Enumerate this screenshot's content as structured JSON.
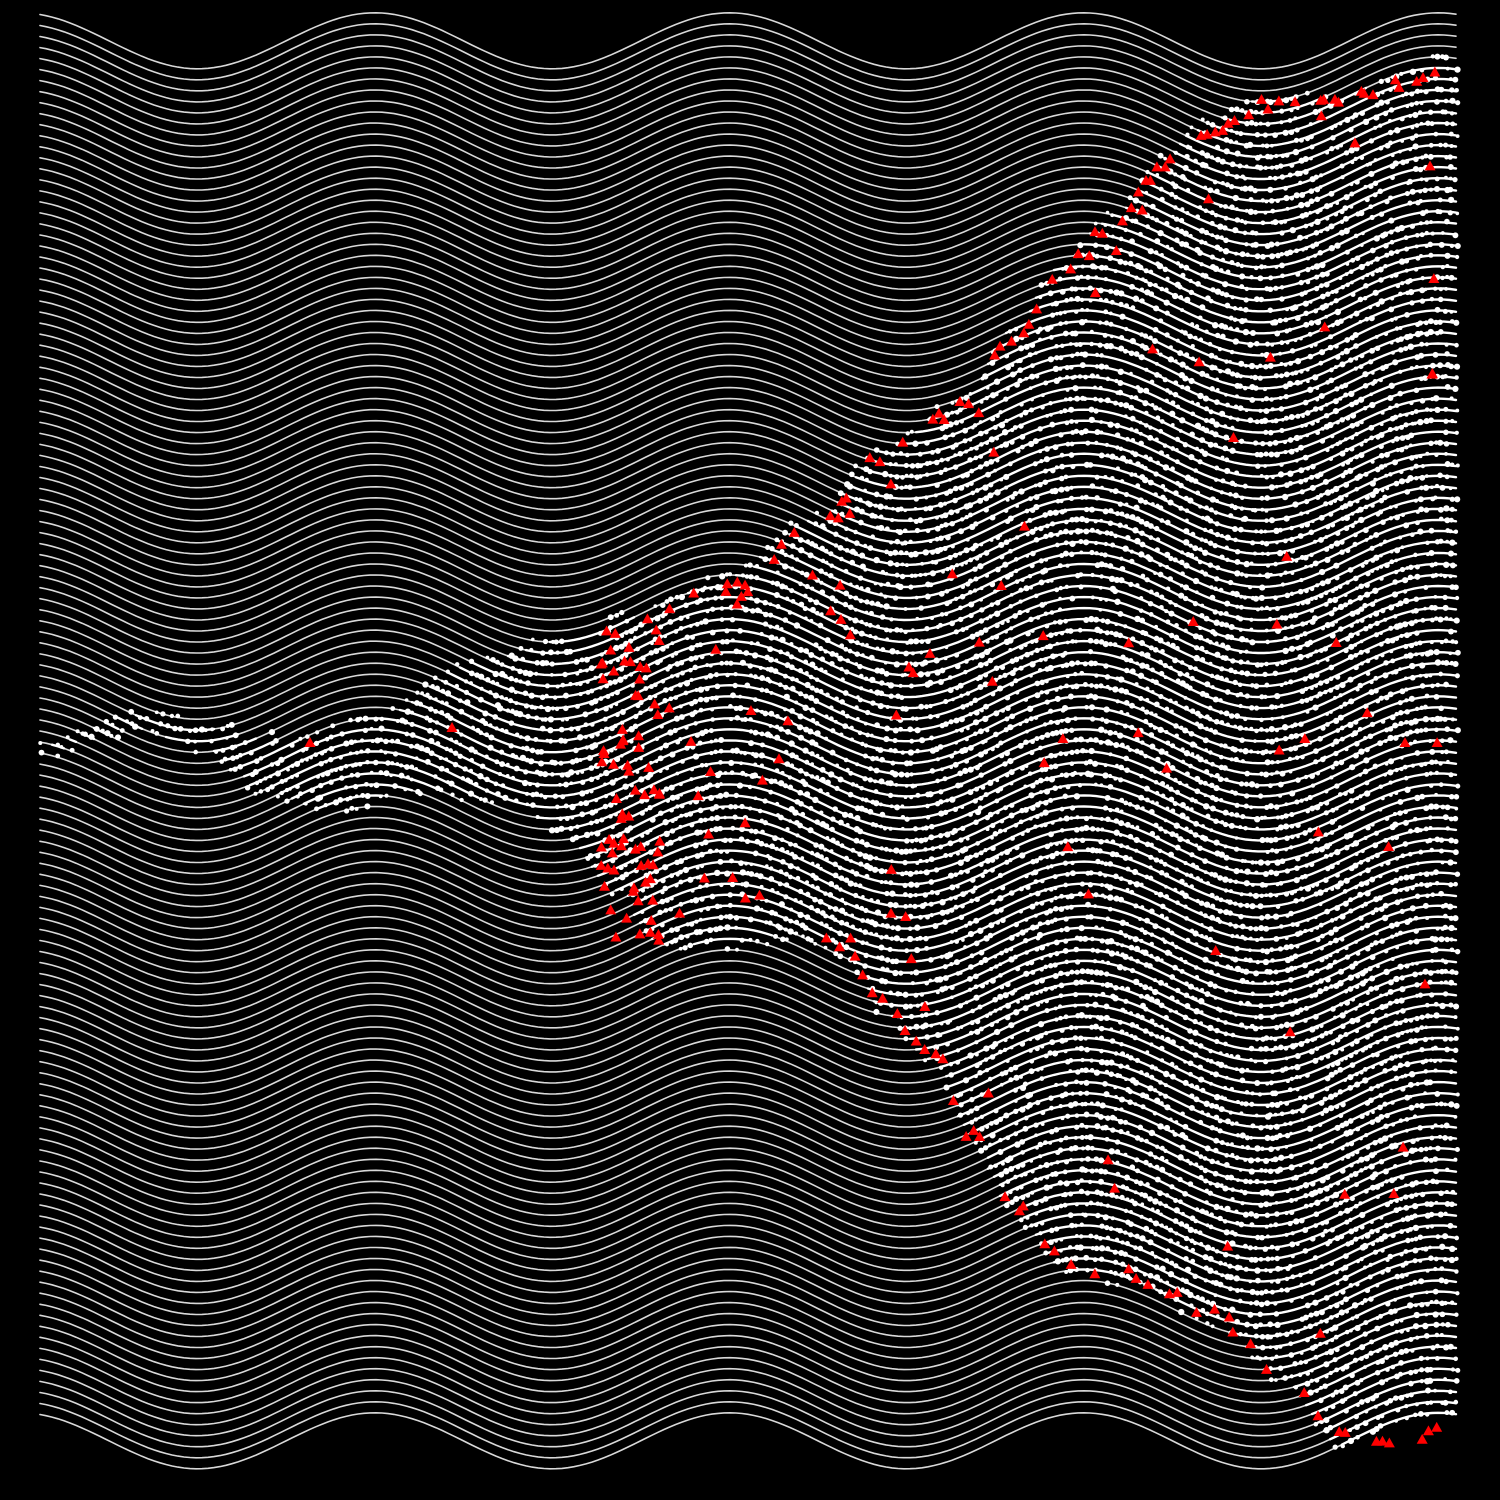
{
  "artwork": {
    "background_color": "#000000",
    "line_color": "#d9d9d9",
    "dense_line_color": "#ffffff",
    "dot_color": "#ffffff",
    "marker_color": "#ff0000",
    "marker_shape": "triangle",
    "dot_shape": "circle",
    "line_count": 128,
    "waves_across": 4
  }
}
